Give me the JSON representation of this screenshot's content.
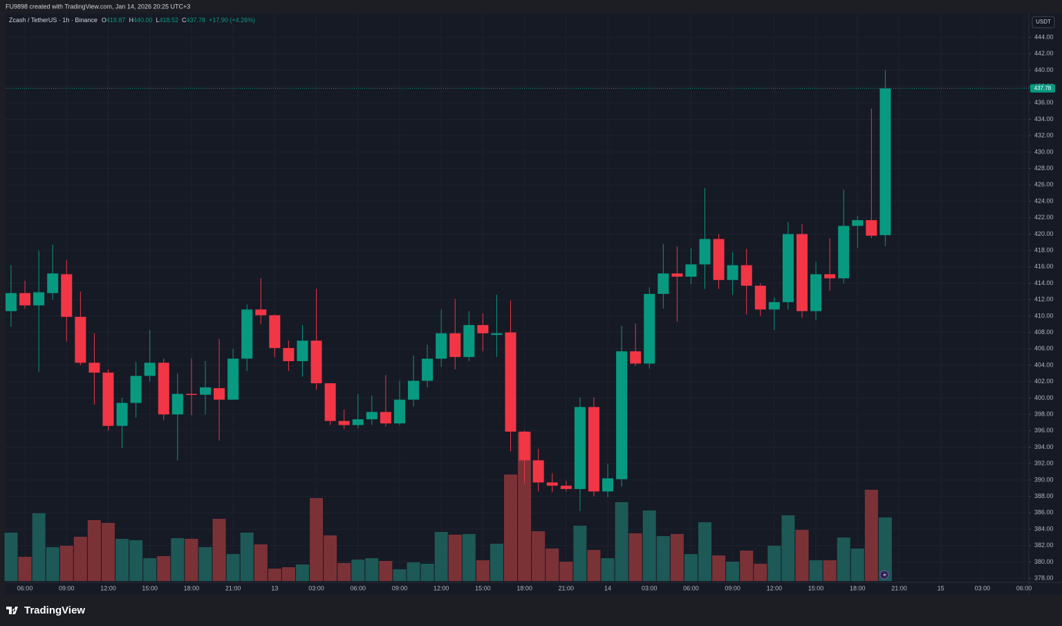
{
  "header": {
    "credit": "FU9898 created with TradingView.com, Jan 14, 2026 20:25 UTC+3"
  },
  "chart_data": {
    "type": "candlestick",
    "symbol": "Zcash / TetherUS · 1h · Binance",
    "ohlc_legend": [
      {
        "label": "O",
        "value": "419.87"
      },
      {
        "label": "H",
        "value": "440.00"
      },
      {
        "label": "L",
        "value": "418.52"
      },
      {
        "label": "C",
        "value": "437.78"
      }
    ],
    "change": "+17.90 (+4.26%)",
    "currency": "USDT",
    "categories": [
      null,
      "06:00",
      null,
      null,
      "09:00",
      null,
      null,
      "12:00",
      null,
      null,
      "15:00",
      null,
      null,
      "18:00",
      null,
      null,
      "21:00",
      null,
      null,
      "13",
      null,
      null,
      "03:00",
      null,
      null,
      "06:00",
      null,
      null,
      "09:00",
      null,
      null,
      "12:00",
      null,
      null,
      "15:00",
      null,
      null,
      "18:00",
      null,
      null,
      "21:00",
      null,
      null,
      "14",
      null,
      null,
      "03:00",
      null,
      null,
      "06:00",
      null,
      null,
      "09:00",
      null,
      null,
      "12:00",
      null,
      null,
      "15:00",
      null,
      null,
      "18:00",
      null,
      null,
      "21:00",
      null,
      null,
      "15",
      null,
      null,
      "03:00",
      null,
      null,
      "06:00"
    ],
    "open": [
      410.6,
      412.8,
      411.3,
      412.8,
      415.1,
      409.9,
      404.3,
      403.1,
      396.6,
      399.4,
      402.7,
      404.3,
      398.0,
      400.5,
      400.4,
      401.2,
      399.8,
      404.8,
      410.8,
      410.1,
      406.1,
      404.5,
      407.0,
      401.8,
      397.2,
      396.7,
      397.4,
      398.3,
      396.9,
      399.8,
      402.1,
      404.8,
      407.9,
      405.0,
      408.9,
      407.7,
      408.0,
      395.9,
      392.4,
      389.7,
      389.3,
      388.9,
      398.9,
      388.6,
      390.1,
      405.7,
      404.2,
      412.7,
      415.2,
      414.8,
      416.3,
      419.4,
      414.4,
      416.2,
      413.7,
      410.8,
      411.7,
      420.0,
      410.6,
      415.1,
      414.6,
      421.0,
      421.7,
      419.87,
      null,
      null,
      null,
      null,
      null,
      null,
      null,
      null,
      null,
      null
    ],
    "high": [
      416.2,
      414.3,
      418.0,
      418.7,
      416.8,
      413.0,
      407.9,
      403.5,
      400.0,
      404.4,
      408.3,
      404.8,
      403.0,
      404.8,
      404.5,
      407.2,
      406.0,
      411.4,
      414.6,
      410.2,
      407.0,
      408.9,
      413.3,
      401.8,
      398.6,
      400.5,
      400.3,
      402.8,
      402.1,
      405.2,
      406.5,
      410.8,
      412.1,
      410.6,
      410.3,
      412.6,
      411.9,
      396.0,
      393.8,
      390.8,
      389.9,
      400.1,
      400.1,
      392.0,
      408.8,
      409.1,
      413.5,
      418.8,
      418.5,
      418.3,
      425.6,
      420.0,
      417.8,
      418.2,
      414.0,
      412.3,
      421.5,
      421.2,
      416.6,
      419.5,
      425.4,
      422.2,
      435.3,
      440.0,
      null,
      null,
      null,
      null,
      null,
      null,
      null,
      null,
      null,
      null
    ],
    "low": [
      408.7,
      410.9,
      403.2,
      412.0,
      406.9,
      404.0,
      399.2,
      396.0,
      393.9,
      397.6,
      402.0,
      397.3,
      392.4,
      397.9,
      398.0,
      394.8,
      399.8,
      403.3,
      409.0,
      405.0,
      403.3,
      402.6,
      401.0,
      396.7,
      396.2,
      396.3,
      396.7,
      396.5,
      396.7,
      399.0,
      401.3,
      403.8,
      403.5,
      404.5,
      405.7,
      405.0,
      393.5,
      389.6,
      388.6,
      388.5,
      388.6,
      386.2,
      388.0,
      387.9,
      389.2,
      403.9,
      403.6,
      410.9,
      409.3,
      413.9,
      413.3,
      413.3,
      412.6,
      410.2,
      410.0,
      408.3,
      410.8,
      409.8,
      409.5,
      413.1,
      414.0,
      418.3,
      419.5,
      418.52,
      null,
      null,
      null,
      null,
      null,
      null,
      null,
      null,
      null,
      null
    ],
    "close": [
      412.8,
      411.3,
      412.9,
      415.2,
      409.9,
      404.3,
      403.1,
      396.6,
      399.4,
      402.7,
      404.3,
      398.0,
      400.5,
      400.4,
      401.3,
      399.8,
      404.8,
      410.8,
      410.1,
      406.1,
      404.5,
      407.0,
      401.8,
      397.2,
      396.7,
      397.4,
      398.3,
      396.9,
      399.8,
      402.1,
      404.8,
      407.9,
      405.0,
      408.9,
      407.9,
      407.9,
      395.9,
      392.4,
      389.7,
      389.3,
      388.9,
      398.9,
      388.6,
      390.2,
      405.7,
      404.2,
      412.7,
      415.2,
      414.8,
      416.3,
      419.4,
      414.4,
      416.2,
      413.7,
      410.8,
      411.7,
      420.0,
      410.6,
      415.1,
      414.6,
      421.0,
      421.7,
      419.8,
      437.78,
      null,
      null,
      null,
      null,
      null,
      null,
      null,
      null,
      null,
      null
    ],
    "volume": [
      70,
      35,
      98,
      49,
      51,
      64,
      88,
      84,
      61,
      59,
      33,
      36,
      62,
      61,
      49,
      90,
      39,
      70,
      53,
      18,
      20,
      24,
      120,
      66,
      26,
      31,
      33,
      29,
      17,
      27,
      25,
      71,
      67,
      68,
      30,
      54,
      154,
      215,
      72,
      47,
      28,
      80,
      45,
      33,
      114,
      69,
      102,
      65,
      68,
      39,
      85,
      37,
      28,
      44,
      25,
      51,
      95,
      74,
      30,
      30,
      63,
      47,
      132,
      92,
      null,
      null,
      null,
      null,
      null,
      null,
      null,
      null,
      null,
      null
    ],
    "colors": {
      "up": "#089981",
      "down": "#f23645",
      "up_volume": "#1d5956",
      "down_volume": "#7b3237"
    },
    "ylim": [
      377.67,
      446.87
    ],
    "yticks": [
      {
        "value": 378,
        "label": "378.00"
      },
      {
        "value": 380,
        "label": "380.00"
      },
      {
        "value": 382,
        "label": "382.00"
      },
      {
        "value": 384,
        "label": "384.00"
      },
      {
        "value": 386,
        "label": "386.00"
      },
      {
        "value": 388,
        "label": "388.00"
      },
      {
        "value": 390,
        "label": "390.00"
      },
      {
        "value": 392,
        "label": "392.00"
      },
      {
        "value": 394,
        "label": "394.00"
      },
      {
        "value": 396,
        "label": "396.00"
      },
      {
        "value": 398,
        "label": "398.00"
      },
      {
        "value": 400,
        "label": "400.00"
      },
      {
        "value": 402,
        "label": "402.00"
      },
      {
        "value": 404,
        "label": "404.00"
      },
      {
        "value": 406,
        "label": "406.00"
      },
      {
        "value": 408,
        "label": "408.00"
      },
      {
        "value": 410,
        "label": "410.00"
      },
      {
        "value": 412,
        "label": "412.00"
      },
      {
        "value": 414,
        "label": "414.00"
      },
      {
        "value": 416,
        "label": "416.00"
      },
      {
        "value": 418,
        "label": "418.00"
      },
      {
        "value": 420,
        "label": "420.00"
      },
      {
        "value": 422,
        "label": "422.00"
      },
      {
        "value": 424,
        "label": "424.00"
      },
      {
        "value": 426,
        "label": "426.00"
      },
      {
        "value": 428,
        "label": "428.00"
      },
      {
        "value": 430,
        "label": "430.00"
      },
      {
        "value": 432,
        "label": "432.00"
      },
      {
        "value": 434,
        "label": "434.00"
      },
      {
        "value": 436,
        "label": "436.00"
      },
      {
        "value": 438,
        "label": "438.00"
      },
      {
        "value": 440,
        "label": "440.00"
      },
      {
        "value": 442,
        "label": "442.00"
      },
      {
        "value": 444,
        "label": "444.00"
      }
    ],
    "grid": true
  },
  "footer": {
    "brand": "TradingView"
  }
}
